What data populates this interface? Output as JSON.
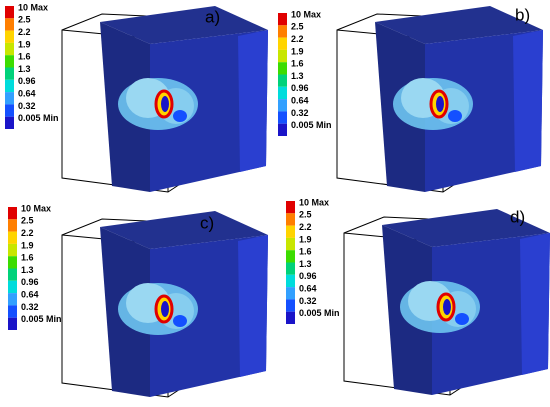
{
  "panels": [
    {
      "label": "a)",
      "legend": [
        "10 Max",
        "2.5",
        "2.2",
        "1.9",
        "1.6",
        "1.3",
        "0.96",
        "0.64",
        "0.32",
        "0.005 Min"
      ]
    },
    {
      "label": "b)",
      "legend": [
        "10 Max",
        "2.5",
        "2.2",
        "1.9",
        "1.6",
        "1.3",
        "0.96",
        "0.64",
        "0.32",
        "0.005 Min"
      ]
    },
    {
      "label": "c)",
      "legend": [
        "10 Max",
        "2.5",
        "2.2",
        "1.9",
        "1.6",
        "1.3",
        "0.96",
        "0.64",
        "0.32",
        "0.005 Min"
      ]
    },
    {
      "label": "d)",
      "legend": [
        "10 Max",
        "2.5",
        "2.2",
        "1.9",
        "1.6",
        "1.3",
        "0.96",
        "0.64",
        "0.32",
        "0.005 Min"
      ]
    }
  ]
}
